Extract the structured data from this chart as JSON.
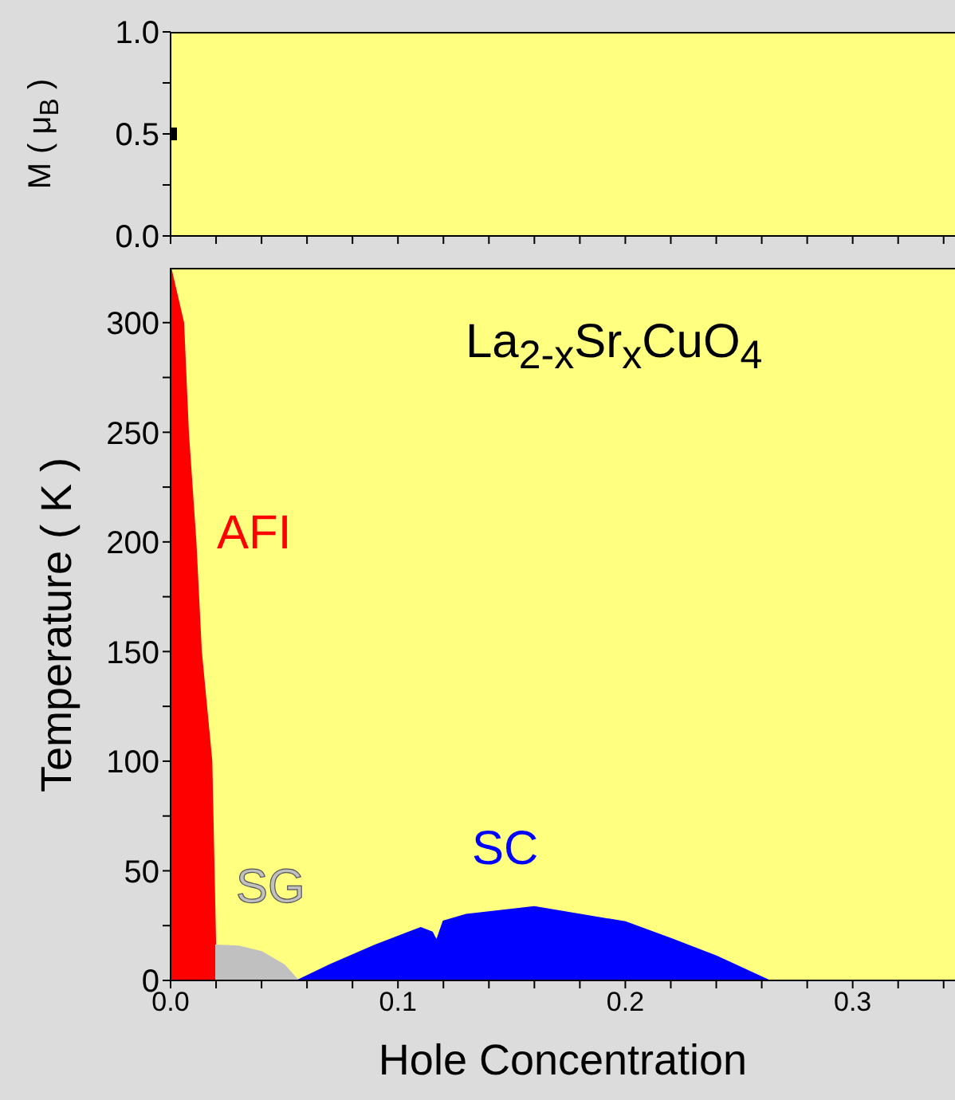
{
  "chart_data": [
    {
      "type": "scatter",
      "ylabel": "M ( μ$_{B}$ )",
      "x": [
        0
      ],
      "values": [
        0.5
      ],
      "color": "#000000",
      "marker": "square",
      "tick_labels": "y",
      "xlim": [
        0,
        0.345
      ],
      "xticks": [
        {
          "value": 0,
          "label": null
        },
        {
          "value": 0.02,
          "label": null
        },
        {
          "value": 0.04,
          "label": null
        },
        {
          "value": 0.06,
          "label": null
        },
        {
          "value": 0.08,
          "label": null
        },
        {
          "value": 0.1,
          "label": null
        },
        {
          "value": 0.12,
          "label": null
        },
        {
          "value": 0.14,
          "label": null
        },
        {
          "value": 0.16,
          "label": null
        },
        {
          "value": 0.18,
          "label": null
        },
        {
          "value": 0.2,
          "label": null
        },
        {
          "value": 0.22,
          "label": null
        },
        {
          "value": 0.24,
          "label": null
        },
        {
          "value": 0.26,
          "label": null
        },
        {
          "value": 0.28,
          "label": null
        },
        {
          "value": 0.3,
          "label": null
        },
        {
          "value": 0.32,
          "label": null
        },
        {
          "value": 0.34,
          "label": null
        }
      ],
      "ylim": [
        0,
        1
      ],
      "yticks": [
        {
          "value": 0,
          "label": "0.0"
        },
        {
          "value": 0.25,
          "label": null
        },
        {
          "value": 0.5,
          "label": "0.5"
        },
        {
          "value": 0.75,
          "label": null
        },
        {
          "value": 1,
          "label": "1.0"
        }
      ]
    },
    {
      "type": "area",
      "xlabel": "Hole Concentration",
      "ylabel": "Temperature ( K )",
      "annotations": [
        "La$_{2-x}$Sr$_{x}$CuO$_{4}$"
      ],
      "series": [
        {
          "name": "AFI",
          "color": "#ff0000",
          "x": [
            0,
            0.0056,
            0.0077,
            0.011,
            0.0134,
            0.018,
            0.019,
            0.02
          ],
          "values": [
            325,
            300,
            250,
            200,
            150,
            100,
            50,
            0
          ]
        },
        {
          "name": "SG",
          "color": "#c0c0c0",
          "x": [
            0.02,
            0.02,
            0.03,
            0.04,
            0.05,
            0.056
          ],
          "values": [
            0,
            16,
            15.5,
            13,
            7,
            0
          ]
        },
        {
          "name": "SC",
          "color": "#0000ff",
          "x": [
            0.056,
            0.07,
            0.09,
            0.11,
            0.115,
            0.117,
            0.12,
            0.13,
            0.16,
            0.2,
            0.22,
            0.24,
            0.263
          ],
          "values": [
            0,
            7,
            16,
            24,
            22,
            18,
            27,
            30,
            33.5,
            26.6,
            19,
            11,
            0
          ]
        }
      ],
      "xlim": [
        0,
        0.345
      ],
      "xticks": [
        {
          "value": 0,
          "label": "0.0"
        },
        {
          "value": 0.02,
          "label": null
        },
        {
          "value": 0.04,
          "label": null
        },
        {
          "value": 0.06,
          "label": null
        },
        {
          "value": 0.08,
          "label": null
        },
        {
          "value": 0.1,
          "label": "0.1"
        },
        {
          "value": 0.12,
          "label": null
        },
        {
          "value": 0.14,
          "label": null
        },
        {
          "value": 0.16,
          "label": null
        },
        {
          "value": 0.18,
          "label": null
        },
        {
          "value": 0.2,
          "label": "0.2"
        },
        {
          "value": 0.22,
          "label": null
        },
        {
          "value": 0.24,
          "label": null
        },
        {
          "value": 0.26,
          "label": null
        },
        {
          "value": 0.28,
          "label": null
        },
        {
          "value": 0.3,
          "label": "0.3"
        },
        {
          "value": 0.32,
          "label": null
        },
        {
          "value": 0.34,
          "label": null
        }
      ],
      "ylim": [
        0,
        325
      ],
      "yticks": [
        0,
        {
          "value": 25,
          "label": null
        },
        50,
        {
          "value": 75,
          "label": null
        },
        100,
        {
          "value": 125,
          "label": null
        },
        150,
        {
          "value": 175,
          "label": null
        },
        200,
        {
          "value": 225,
          "label": null
        },
        250,
        {
          "value": 275,
          "label": null
        },
        300
      ]
    }
  ]
}
